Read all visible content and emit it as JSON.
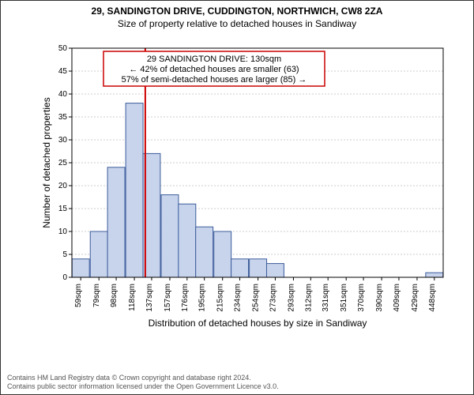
{
  "title_line1": "29, SANDINGTON DRIVE, CUDDINGTON, NORTHWICH, CW8 2ZA",
  "title_line2": "Size of property relative to detached houses in Sandiway",
  "ylabel": "Number of detached properties",
  "xlabel": "Distribution of detached houses by size in Sandiway",
  "annot_line1": "29 SANDINGTON DRIVE: 130sqm",
  "annot_line2": "← 42% of detached houses are smaller (63)",
  "annot_line3": "57% of semi-detached houses are larger (85) →",
  "annot_border": "#cc0000",
  "marker_color": "#cc0000",
  "marker_x": 130,
  "bar_fill": "#c8d4ec",
  "bar_stroke": "#3b5b9a",
  "grid_color": "#cccccc",
  "border_color": "#000000",
  "background": "#ffffff",
  "ylim": [
    0,
    50
  ],
  "ytick_step": 5,
  "x_categories": [
    "59sqm",
    "79sqm",
    "98sqm",
    "118sqm",
    "137sqm",
    "157sqm",
    "176sqm",
    "195sqm",
    "215sqm",
    "234sqm",
    "254sqm",
    "273sqm",
    "293sqm",
    "312sqm",
    "331sqm",
    "351sqm",
    "370sqm",
    "390sqm",
    "409sqm",
    "429sqm",
    "448sqm"
  ],
  "x_values": [
    59,
    79,
    98,
    118,
    137,
    157,
    176,
    195,
    215,
    234,
    254,
    273,
    293,
    312,
    331,
    351,
    370,
    390,
    409,
    429,
    448
  ],
  "bar_values": [
    4,
    10,
    24,
    38,
    27,
    18,
    16,
    11,
    10,
    4,
    4,
    3,
    0,
    0,
    0,
    0,
    0,
    0,
    0,
    0,
    1
  ],
  "footer_line1": "Contains HM Land Registry data © Crown copyright and database right 2024.",
  "footer_line2": "Contains public sector information licensed under the Open Government Licence v3.0.",
  "title_fontsize": 12,
  "subtitle_fontsize": 12,
  "label_fontsize": 12,
  "tick_fontsize": 10,
  "annot_fontsize": 11,
  "footer_fontsize": 9
}
